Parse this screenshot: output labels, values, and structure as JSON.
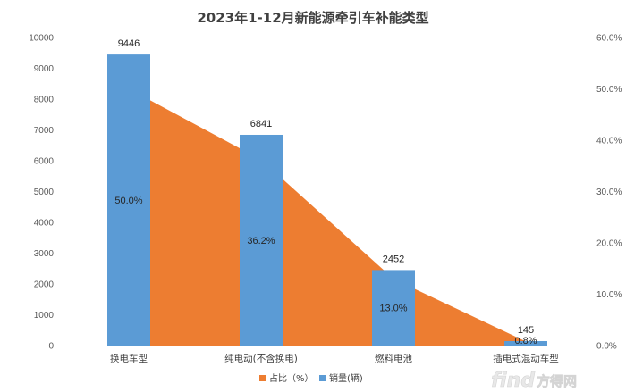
{
  "chart_data": {
    "type": "bar",
    "title": "2023年1-12月新能源牵引车补能类型",
    "categories": [
      "换电车型",
      "纯电动(不含换电)",
      "燃料电池",
      "插电式混动车型"
    ],
    "series": [
      {
        "name": "销量(辆)",
        "type": "bar",
        "axis": "left",
        "color": "#5b9bd5",
        "values": [
          9446,
          6841,
          2452,
          145
        ]
      },
      {
        "name": "占比（%）",
        "type": "area",
        "axis": "right",
        "color": "#ed7d31",
        "values": [
          50.0,
          36.2,
          13.0,
          0.8
        ]
      }
    ],
    "value_labels": [
      "9446",
      "6841",
      "2452",
      "145"
    ],
    "percent_labels": [
      "50.0%",
      "36.2%",
      "13.0%",
      "0.8%"
    ],
    "y_left": {
      "range": [
        0,
        10000
      ],
      "ticks": [
        "0",
        "1000",
        "2000",
        "3000",
        "4000",
        "5000",
        "6000",
        "7000",
        "8000",
        "9000",
        "10000"
      ]
    },
    "y_right": {
      "range": [
        0,
        60
      ],
      "ticks": [
        "0.0%",
        "10.0%",
        "20.0%",
        "30.0%",
        "40.0%",
        "50.0%",
        "60.0%"
      ]
    },
    "grid": false,
    "legend_position": "bottom",
    "legend": [
      "占比（%）",
      "销量(辆)"
    ]
  },
  "watermark": {
    "brand": "find",
    "suffix": "方得网"
  }
}
